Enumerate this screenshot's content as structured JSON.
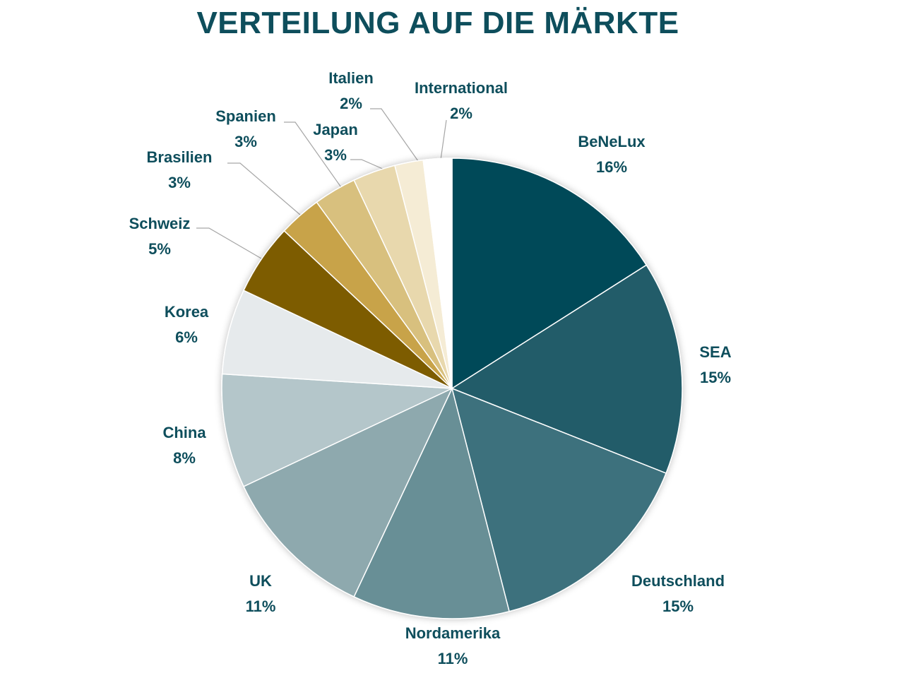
{
  "chart_data": {
    "type": "pie",
    "title": "VERTEILUNG AUF DIE MÄRKTE",
    "start_angle_deg": 0,
    "direction": "clockwise",
    "legend": "none",
    "slices": [
      {
        "label": "BeNeLux",
        "value": 16,
        "display": "16%",
        "color": "#054a58"
      },
      {
        "label": "SEA",
        "value": 15,
        "display": "15%",
        "color": "#215c69"
      },
      {
        "label": "Deutschland",
        "value": 15,
        "display": "15%",
        "color": "#3e717d"
      },
      {
        "label": "Nordamerika",
        "value": 11,
        "display": "11%",
        "color": "#688f96"
      },
      {
        "label": "UK",
        "value": 11,
        "display": "11%",
        "color": "#8ea9ae"
      },
      {
        "label": "China",
        "value": 8,
        "display": "8%",
        "color": "#b4c6ca"
      },
      {
        "label": "Korea",
        "value": 6,
        "display": "6%",
        "color": "#e6eaec"
      },
      {
        "label": "Schweiz",
        "value": 5,
        "display": "5%",
        "color": "#7d5b03"
      },
      {
        "label": "Brasilien",
        "value": 3,
        "display": "3%",
        "color": "#c8a349"
      },
      {
        "label": "Spanien",
        "value": 3,
        "display": "3%",
        "color": "#d8c07e"
      },
      {
        "label": "Japan",
        "value": 3,
        "display": "3%",
        "color": "#e8d8ad"
      },
      {
        "label": "Italien",
        "value": 2,
        "display": "2%",
        "color": "#f5ecd5"
      },
      {
        "label": "International",
        "value": 2,
        "display": "2%",
        "color": "#ffffff"
      }
    ]
  }
}
